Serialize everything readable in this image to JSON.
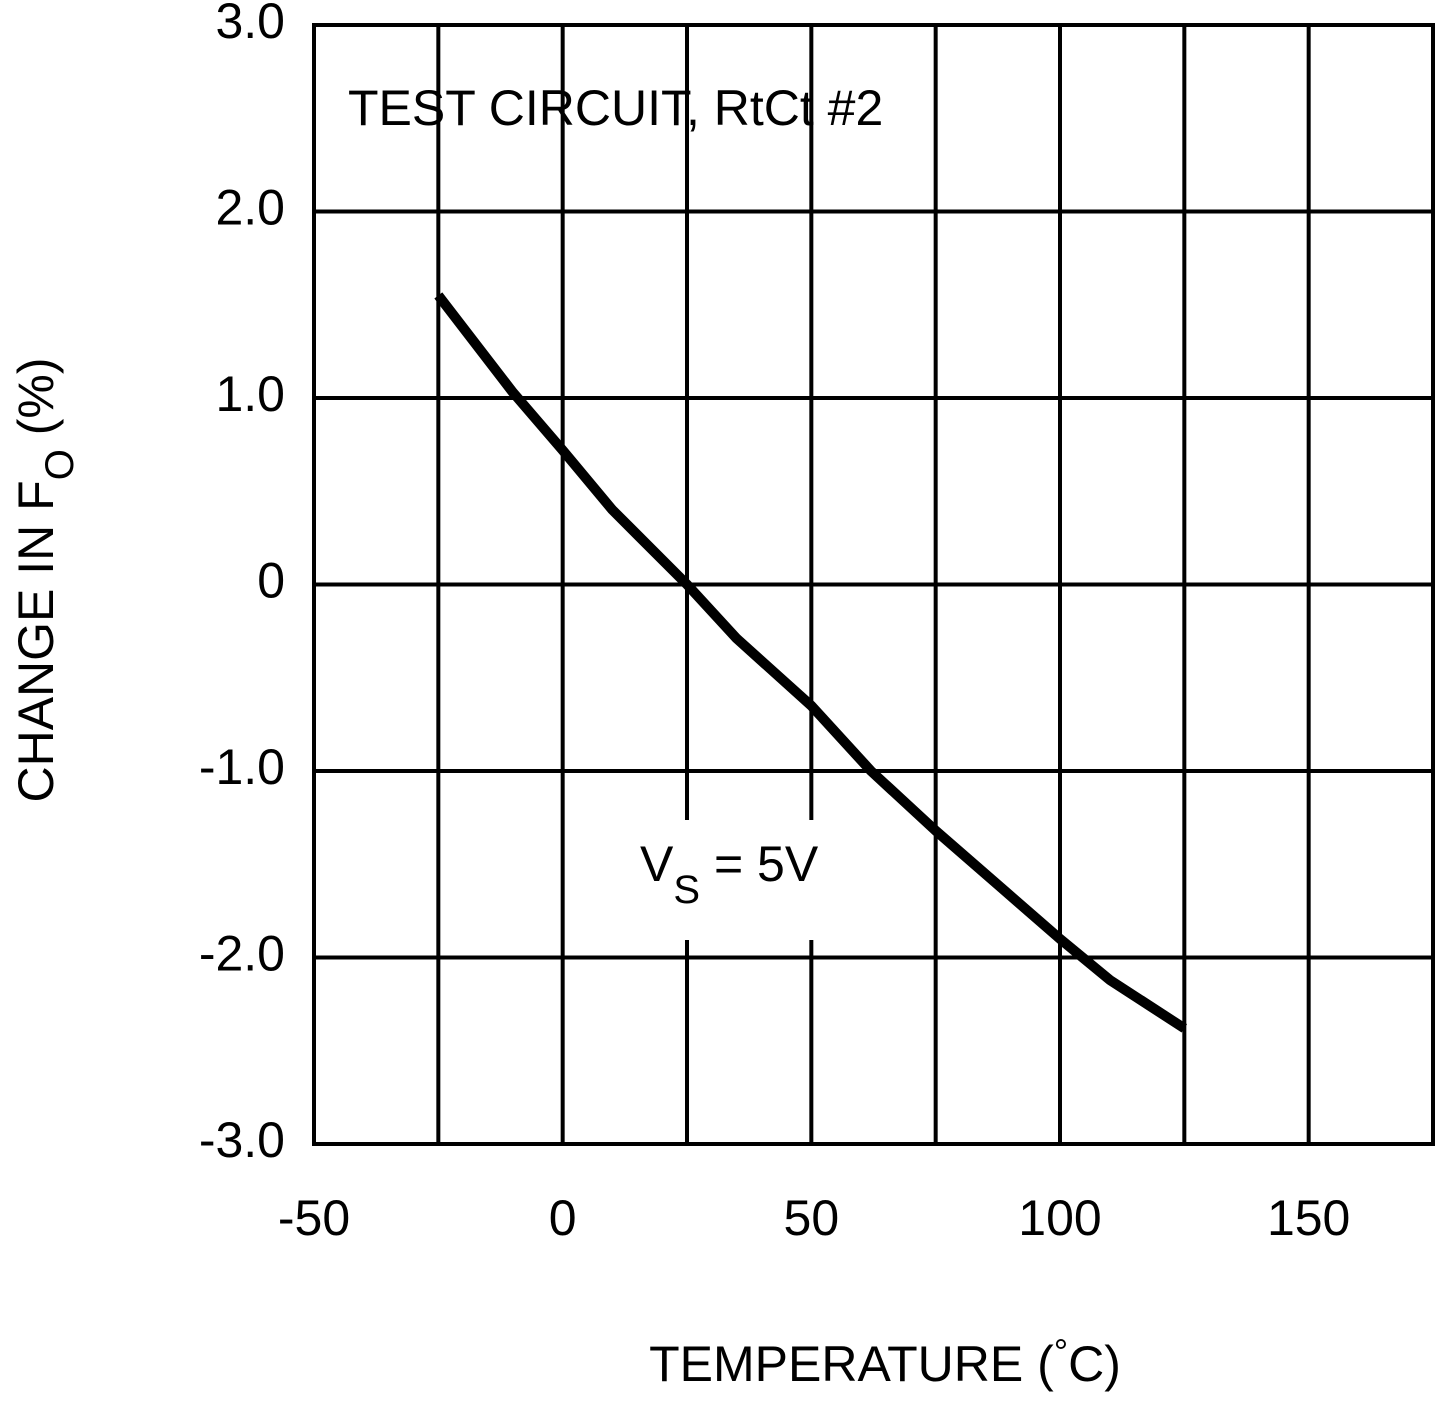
{
  "chart_data": {
    "type": "line",
    "x_label": [
      "TEMPERATURE (",
      "°",
      "C)"
    ],
    "y_label": [
      "CHANGE IN F",
      "O",
      " (%)"
    ],
    "annotations": [
      {
        "parts": [
          "TEST CIRCUIT, RtCt #2"
        ]
      },
      {
        "parts": [
          "V",
          "S",
          " = 5V"
        ]
      }
    ],
    "x": [
      -25,
      -10,
      0,
      10,
      25,
      35,
      50,
      62,
      75,
      100,
      110,
      125
    ],
    "series": [
      {
        "color": "#000000",
        "values": [
          1.55,
          1.03,
          0.72,
          0.4,
          0,
          -0.29,
          -0.65,
          -1.0,
          -1.32,
          -1.9,
          -2.12,
          -2.38
        ]
      }
    ],
    "xlim": [
      -50,
      175
    ],
    "xticks": [
      -50,
      0,
      50,
      100,
      150
    ],
    "xminorticks": [
      -25,
      25,
      75,
      125,
      175
    ],
    "ylim": [
      -3,
      3
    ],
    "yticks": [
      {
        "value": -3,
        "label": "-3.0"
      },
      {
        "value": -2,
        "label": "-2.0"
      },
      {
        "value": -1,
        "label": "-1.0"
      },
      0,
      {
        "value": 1,
        "label": "1.0"
      },
      {
        "value": 2,
        "label": "2.0"
      },
      {
        "value": 3,
        "label": "3.0"
      }
    ],
    "grid": true
  }
}
